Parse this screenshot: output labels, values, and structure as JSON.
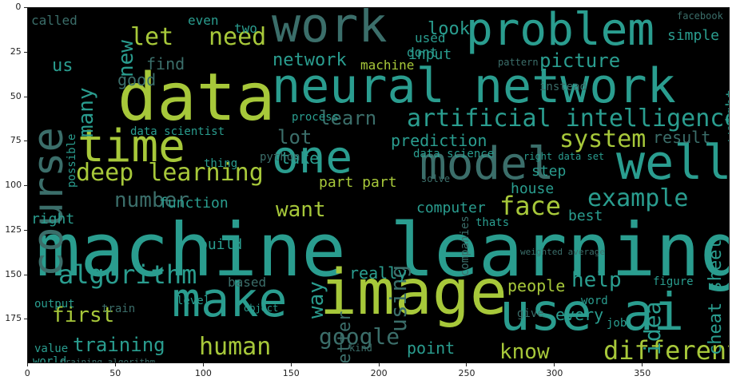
{
  "axes": {
    "x_ticks": [
      "0",
      "50",
      "100",
      "150",
      "200",
      "250",
      "300",
      "350"
    ],
    "y_ticks": [
      "0",
      "25",
      "50",
      "75",
      "100",
      "125",
      "150",
      "175"
    ]
  },
  "palette": {
    "background": "#000000",
    "teal": "#2a9d8f",
    "teal_dark": "#1f6f66",
    "green_yellow": "#a7c83a",
    "dark_slate": "#2f4f4f",
    "slate": "#3b6e6a",
    "lime": "#9fd04a"
  },
  "words": [
    {
      "text": "machine learning",
      "color": "teal"
    },
    {
      "text": "data",
      "color": "green_yellow"
    },
    {
      "text": "neural network",
      "color": "teal"
    },
    {
      "text": "image",
      "color": "green_yellow"
    },
    {
      "text": "problem",
      "color": "teal"
    },
    {
      "text": "work",
      "color": "slate"
    },
    {
      "text": "use ai",
      "color": "teal"
    },
    {
      "text": "make",
      "color": "teal"
    },
    {
      "text": "course",
      "color": "slate"
    },
    {
      "text": "one",
      "color": "teal"
    },
    {
      "text": "time",
      "color": "green_yellow"
    },
    {
      "text": "model",
      "color": "slate"
    },
    {
      "text": "well",
      "color": "teal"
    },
    {
      "text": "deep learning",
      "color": "green_yellow"
    },
    {
      "text": "artificial intelligence",
      "color": "teal"
    },
    {
      "text": "algorithm",
      "color": "teal"
    },
    {
      "text": "system",
      "color": "green_yellow"
    },
    {
      "text": "face",
      "color": "green_yellow"
    },
    {
      "text": "example",
      "color": "teal"
    },
    {
      "text": "different",
      "color": "green_yellow"
    },
    {
      "text": "human",
      "color": "green_yellow"
    },
    {
      "text": "google",
      "color": "slate"
    },
    {
      "text": "training",
      "color": "teal"
    },
    {
      "text": "first",
      "color": "green_yellow"
    },
    {
      "text": "let",
      "color": "green_yellow"
    },
    {
      "text": "need",
      "color": "green_yellow"
    },
    {
      "text": "picture",
      "color": "teal"
    },
    {
      "text": "network",
      "color": "teal"
    },
    {
      "text": "learn",
      "color": "slate"
    },
    {
      "text": "lot",
      "color": "slate"
    },
    {
      "text": "want",
      "color": "green_yellow"
    },
    {
      "text": "number",
      "color": "slate"
    },
    {
      "text": "help",
      "color": "teal"
    },
    {
      "text": "idea",
      "color": "teal"
    },
    {
      "text": "know",
      "color": "green_yellow"
    },
    {
      "text": "using",
      "color": "slate"
    },
    {
      "text": "way",
      "color": "teal"
    },
    {
      "text": "many",
      "color": "teal"
    },
    {
      "text": "new",
      "color": "teal"
    },
    {
      "text": "us",
      "color": "teal"
    },
    {
      "text": "look",
      "color": "teal"
    },
    {
      "text": "simple",
      "color": "teal"
    },
    {
      "text": "find",
      "color": "slate"
    },
    {
      "text": "good",
      "color": "slate"
    },
    {
      "text": "input",
      "color": "teal"
    },
    {
      "text": "used",
      "color": "teal"
    },
    {
      "text": "machine",
      "color": "green_yellow"
    },
    {
      "text": "result",
      "color": "slate"
    },
    {
      "text": "prediction",
      "color": "teal"
    },
    {
      "text": "part part",
      "color": "green_yellow"
    },
    {
      "text": "take",
      "color": "teal"
    },
    {
      "text": "function",
      "color": "teal"
    },
    {
      "text": "computer",
      "color": "teal"
    },
    {
      "text": "best",
      "color": "teal"
    },
    {
      "text": "house",
      "color": "teal"
    },
    {
      "text": "step",
      "color": "teal"
    },
    {
      "text": "cheat sheet",
      "color": "teal"
    },
    {
      "text": "people",
      "color": "green_yellow"
    },
    {
      "text": "really",
      "color": "teal"
    },
    {
      "text": "better",
      "color": "slate"
    },
    {
      "text": "every",
      "color": "teal"
    },
    {
      "text": "point",
      "color": "teal"
    },
    {
      "text": "based",
      "color": "slate"
    },
    {
      "text": "level",
      "color": "teal"
    },
    {
      "text": "output",
      "color": "teal"
    },
    {
      "text": "train",
      "color": "slate"
    },
    {
      "text": "right",
      "color": "teal"
    },
    {
      "text": "build",
      "color": "teal"
    },
    {
      "text": "value",
      "color": "teal"
    },
    {
      "text": "world",
      "color": "teal"
    },
    {
      "text": "object",
      "color": "teal"
    },
    {
      "text": "thats",
      "color": "teal"
    },
    {
      "text": "companies",
      "color": "slate"
    },
    {
      "text": "process",
      "color": "teal"
    },
    {
      "text": "data scientist",
      "color": "teal"
    },
    {
      "text": "data science",
      "color": "teal"
    },
    {
      "text": "possible",
      "color": "teal"
    },
    {
      "text": "python",
      "color": "slate"
    },
    {
      "text": "thing",
      "color": "teal"
    },
    {
      "text": "weight",
      "color": "teal"
    },
    {
      "text": "instead",
      "color": "slate"
    },
    {
      "text": "called",
      "color": "slate"
    },
    {
      "text": "even",
      "color": "teal"
    },
    {
      "text": "two",
      "color": "teal"
    },
    {
      "text": "dont",
      "color": "teal"
    },
    {
      "text": "right data set",
      "color": "teal"
    },
    {
      "text": "job",
      "color": "teal"
    },
    {
      "text": "figure",
      "color": "teal"
    },
    {
      "text": "word",
      "color": "teal"
    },
    {
      "text": "give",
      "color": "slate"
    },
    {
      "text": "kind",
      "color": "slate"
    },
    {
      "text": "solve",
      "color": "slate"
    },
    {
      "text": "pattern",
      "color": "slate"
    },
    {
      "text": "facebook",
      "color": "slate"
    },
    {
      "text": "training algorithm",
      "color": "slate"
    },
    {
      "text": "weighted average",
      "color": "slate"
    }
  ]
}
